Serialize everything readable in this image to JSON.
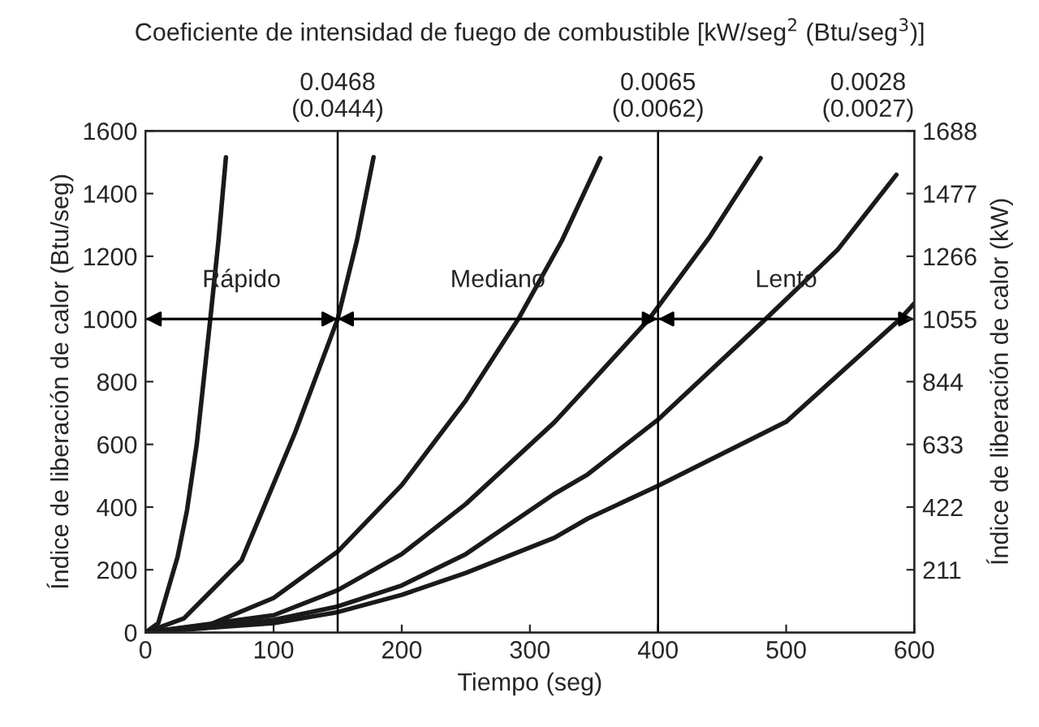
{
  "chart_data": {
    "type": "line",
    "xlabel": "Tiempo (seg)",
    "ylabel": "Índice de liberación de calor (Btu/seg)",
    "y2label": "Índice de liberación de calor (kW)",
    "title": "Coeficiente de intensidad de fuego de combustible [kW/seg$^{2}$ (Btu/seg$^{3}$)]",
    "xlim": [
      0,
      600
    ],
    "xticks": [
      0,
      100,
      200,
      300,
      400,
      500,
      600
    ],
    "ylim": [
      0,
      1600
    ],
    "yticks": [
      0,
      200,
      400,
      600,
      800,
      1000,
      1200,
      1400,
      1600
    ],
    "y2lim": [
      0,
      1688
    ],
    "y2ticks": [
      211,
      422,
      633,
      844,
      1055,
      1266,
      1477,
      1688
    ],
    "grid": false,
    "legend": false,
    "marker": "none",
    "line_style": "solid",
    "ref_lines": [
      {
        "axis": "x",
        "value": 150
      },
      {
        "axis": "x",
        "value": 400
      },
      {
        "axis": "y",
        "value": 1000
      }
    ],
    "annotations": [
      "Rápido",
      "Mediano",
      "Lento",
      "0.0468\n(0.0444)",
      "0.0065\n(0.0062)",
      "0.0028\n(0.0027)"
    ],
    "series": [
      {
        "color": "#1a1a1a",
        "x": [
          0,
          10,
          15.6,
          25,
          32.4,
          40,
          50.6,
          57,
          62.8
        ],
        "values": [
          0,
          30,
          109,
          240,
          389,
          600,
          1000,
          1250,
          1516
        ]
      },
      {
        "color": "#1a1a1a",
        "x": [
          0,
          30,
          75,
          117,
          150,
          165,
          178
        ],
        "values": [
          0,
          45,
          230,
          640,
          1000,
          1250,
          1516
        ]
      },
      {
        "color": "#1a1a1a",
        "x": [
          0,
          50,
          100,
          150,
          200,
          250,
          291,
          325,
          355
        ],
        "values": [
          0,
          25,
          110,
          258,
          470,
          740,
          1000,
          1250,
          1513
        ]
      },
      {
        "color": "#1a1a1a",
        "x": [
          0,
          100,
          150,
          200,
          250,
          319,
          345,
          393,
          440,
          480
        ],
        "values": [
          0,
          55,
          135,
          250,
          410,
          670,
          785,
          1000,
          1260,
          1513
        ]
      },
      {
        "color": "#1a1a1a",
        "x": [
          0,
          100,
          150,
          200,
          250,
          319,
          345,
          400,
          484,
          540,
          586
        ],
        "values": [
          0,
          40,
          83,
          150,
          250,
          442,
          504,
          679,
          1000,
          1220,
          1460
        ]
      },
      {
        "color": "#1a1a1a",
        "x": [
          0,
          100,
          150,
          200,
          250,
          319,
          345,
          400,
          500,
          589,
          600
        ],
        "values": [
          0,
          30,
          65,
          120,
          190,
          302,
          363,
          468,
          672,
          1000,
          1050
        ]
      }
    ]
  }
}
